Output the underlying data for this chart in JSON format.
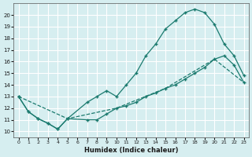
{
  "xlabel": "Humidex (Indice chaleur)",
  "xlim": [
    -0.5,
    23.5
  ],
  "ylim": [
    9.5,
    21.0
  ],
  "yticks": [
    10,
    11,
    12,
    13,
    14,
    15,
    16,
    17,
    18,
    19,
    20
  ],
  "xticks": [
    0,
    1,
    2,
    3,
    4,
    5,
    6,
    7,
    8,
    9,
    10,
    11,
    12,
    13,
    14,
    15,
    16,
    17,
    18,
    19,
    20,
    21,
    22,
    23
  ],
  "background_color": "#d6eef0",
  "grid_color": "#ffffff",
  "line_color": "#1a7a6e",
  "line1_x": [
    0,
    1,
    2,
    3,
    4,
    5,
    7,
    8,
    9,
    10,
    11,
    12,
    13,
    14,
    15,
    16,
    17,
    18,
    19,
    20,
    21,
    22,
    23
  ],
  "line1_y": [
    13,
    11.7,
    11.1,
    10.7,
    10.2,
    11.1,
    12.5,
    13.0,
    13.5,
    13.0,
    14.0,
    15.0,
    16.5,
    17.5,
    18.8,
    19.5,
    20.2,
    20.5,
    20.2,
    19.2,
    17.5,
    16.5,
    14.8
  ],
  "line2_x": [
    0,
    1,
    2,
    3,
    4,
    5,
    7,
    8,
    9,
    10,
    11,
    12,
    13,
    14,
    15,
    16,
    17,
    18,
    19,
    20,
    21,
    22,
    23
  ],
  "line2_y": [
    13,
    11.7,
    11.1,
    10.7,
    10.2,
    11.1,
    11.0,
    11.0,
    11.5,
    12.0,
    12.2,
    12.5,
    13.0,
    13.3,
    13.7,
    14.0,
    14.5,
    15.0,
    15.5,
    16.2,
    16.5,
    15.7,
    14.2
  ],
  "line3_x": [
    0,
    5,
    10,
    15,
    20,
    23
  ],
  "line3_y": [
    13,
    11.1,
    12.0,
    13.7,
    16.2,
    14.2
  ]
}
